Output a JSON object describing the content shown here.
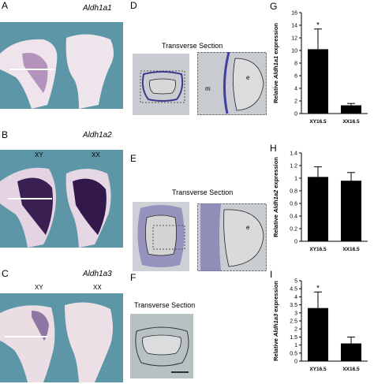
{
  "panels": {
    "A": {
      "letter": "A",
      "title": "Aldh1a1",
      "left": "XY",
      "right": "XX"
    },
    "B": {
      "letter": "B",
      "title": "Aldh1a2",
      "left": "XY",
      "right": "XX"
    },
    "C": {
      "letter": "C",
      "title": "Aldh1a3",
      "left": "XY",
      "right": "XX"
    },
    "D": {
      "letter": "D",
      "section_title": "Transverse Section",
      "label_m": "m",
      "label_e": "e"
    },
    "E": {
      "letter": "E",
      "section_title": "Transverse Section",
      "label_e": "e"
    },
    "F": {
      "letter": "F",
      "section_title": "Transverse Section"
    }
  },
  "chart_data": [
    {
      "letter": "G",
      "type": "bar",
      "categories": [
        "XY16.5",
        "XX16.5"
      ],
      "values": [
        10.2,
        1.3
      ],
      "errors": [
        3.2,
        0.3
      ],
      "ylabel_prefix": "Relative ",
      "ylabel_gene": "Aldh1a1",
      "ylabel_suffix": " expression",
      "ylim": [
        0,
        16
      ],
      "yticks": [
        "0",
        "2",
        "4",
        "6",
        "8",
        "10",
        "12",
        "14",
        "16"
      ],
      "annotation": "*"
    },
    {
      "letter": "H",
      "type": "bar",
      "categories": [
        "XY16.5",
        "XX16.5"
      ],
      "values": [
        1.02,
        0.96
      ],
      "errors": [
        0.16,
        0.13
      ],
      "ylabel_prefix": "Relative ",
      "ylabel_gene": "Aldh1a2",
      "ylabel_suffix": " expression",
      "ylim": [
        0,
        1.4
      ],
      "yticks": [
        "0",
        "0.2",
        "0.4",
        "0.6",
        "0.8",
        "1",
        "1.2",
        "1.4"
      ],
      "annotation": ""
    },
    {
      "letter": "I",
      "type": "bar",
      "categories": [
        "XY16.5",
        "XX16.5"
      ],
      "values": [
        3.3,
        1.1
      ],
      "errors": [
        1.0,
        0.4
      ],
      "ylabel_prefix": "Relative ",
      "ylabel_gene": "Aldh1a3",
      "ylabel_suffix": " expression",
      "ylim": [
        0,
        5
      ],
      "yticks": [
        "0",
        "0.5",
        "1",
        "1.5",
        "2",
        "2.5",
        "3",
        "3.5",
        "4",
        "4.5",
        "5"
      ],
      "annotation": "*"
    }
  ]
}
